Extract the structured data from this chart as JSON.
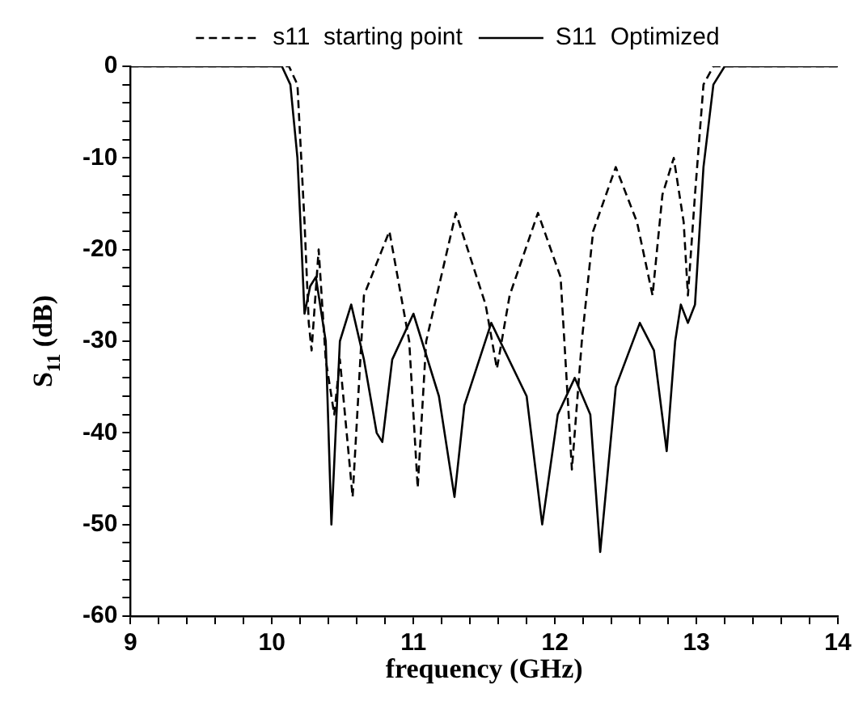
{
  "chart_data": {
    "type": "line",
    "xlabel": "frequency (GHz)",
    "ylabel": "S$_{11}$ (dB)",
    "legend": "top",
    "marker": "none",
    "grid": false,
    "xlim": [
      9,
      14
    ],
    "ylim": [
      -60,
      0
    ],
    "xticks": [
      9,
      {
        "value": 9.2,
        "label": null
      },
      {
        "value": 9.4,
        "label": null
      },
      {
        "value": 9.6,
        "label": null
      },
      {
        "value": 9.8,
        "label": null
      },
      10,
      {
        "value": 10.2,
        "label": null
      },
      {
        "value": 10.4,
        "label": null
      },
      {
        "value": 10.6,
        "label": null
      },
      {
        "value": 10.8,
        "label": null
      },
      11,
      {
        "value": 11.2,
        "label": null
      },
      {
        "value": 11.4,
        "label": null
      },
      {
        "value": 11.6,
        "label": null
      },
      {
        "value": 11.8,
        "label": null
      },
      12,
      {
        "value": 12.2,
        "label": null
      },
      {
        "value": 12.4,
        "label": null
      },
      {
        "value": 12.6,
        "label": null
      },
      {
        "value": 12.8,
        "label": null
      },
      13,
      {
        "value": 13.2,
        "label": null
      },
      {
        "value": 13.4,
        "label": null
      },
      {
        "value": 13.6,
        "label": null
      },
      {
        "value": 13.8,
        "label": null
      },
      14
    ],
    "yticks": [
      -60,
      {
        "value": -58,
        "label": null
      },
      {
        "value": -56,
        "label": null
      },
      {
        "value": -54,
        "label": null
      },
      {
        "value": -52,
        "label": null
      },
      -50,
      {
        "value": -48,
        "label": null
      },
      {
        "value": -46,
        "label": null
      },
      {
        "value": -44,
        "label": null
      },
      {
        "value": -42,
        "label": null
      },
      -40,
      {
        "value": -38,
        "label": null
      },
      {
        "value": -36,
        "label": null
      },
      {
        "value": -34,
        "label": null
      },
      {
        "value": -32,
        "label": null
      },
      -30,
      {
        "value": -28,
        "label": null
      },
      {
        "value": -26,
        "label": null
      },
      {
        "value": -24,
        "label": null
      },
      {
        "value": -22,
        "label": null
      },
      -20,
      {
        "value": -18,
        "label": null
      },
      {
        "value": -16,
        "label": null
      },
      {
        "value": -14,
        "label": null
      },
      {
        "value": -12,
        "label": null
      },
      -10,
      {
        "value": -8,
        "label": null
      },
      {
        "value": -6,
        "label": null
      },
      {
        "value": -4,
        "label": null
      },
      {
        "value": -2,
        "label": null
      },
      0
    ],
    "series": [
      {
        "name": "s11  starting point",
        "color": "#000000",
        "line_style": "dashed",
        "x": [
          9,
          10.12,
          10.18,
          10.23,
          10.26,
          10.28,
          10.33,
          10.38,
          10.44,
          10.48,
          10.57,
          10.65,
          10.83,
          10.97,
          11.03,
          11.09,
          11.3,
          11.51,
          11.59,
          11.68,
          11.88,
          12.04,
          12.12,
          12.19,
          12.27,
          12.43,
          12.58,
          12.69,
          12.76,
          12.84,
          12.91,
          12.94,
          12.99,
          13.05,
          13.12,
          14
        ],
        "values": [
          0,
          0,
          -2,
          -17,
          -28,
          -31,
          -20,
          -32,
          -38,
          -32,
          -47,
          -25,
          -18,
          -30,
          -46,
          -30,
          -16,
          -26,
          -33,
          -25,
          -16,
          -23,
          -44,
          -30,
          -18,
          -11,
          -17,
          -25,
          -14,
          -10,
          -17,
          -25,
          -14,
          -2,
          0,
          0
        ]
      },
      {
        "name": "S11  Optimized",
        "color": "#000000",
        "line_style": "solid",
        "x": [
          9,
          10.07,
          10.13,
          10.18,
          10.21,
          10.23,
          10.27,
          10.31,
          10.38,
          10.42,
          10.48,
          10.56,
          10.65,
          10.74,
          10.78,
          10.85,
          11,
          11.18,
          11.29,
          11.36,
          11.55,
          11.8,
          11.91,
          12.02,
          12.14,
          12.25,
          12.32,
          12.43,
          12.6,
          12.7,
          12.79,
          12.85,
          12.89,
          12.94,
          12.99,
          13.05,
          13.12,
          13.2,
          14
        ],
        "values": [
          0,
          0,
          -2,
          -10,
          -20,
          -27,
          -24,
          -23,
          -30,
          -50,
          -30,
          -26,
          -32,
          -40,
          -41,
          -32,
          -27,
          -36,
          -47,
          -37,
          -28,
          -36,
          -50,
          -38,
          -34,
          -38,
          -53,
          -35,
          -28,
          -31,
          -42,
          -30,
          -26,
          -28,
          -26,
          -11,
          -2,
          0,
          0
        ]
      }
    ]
  }
}
